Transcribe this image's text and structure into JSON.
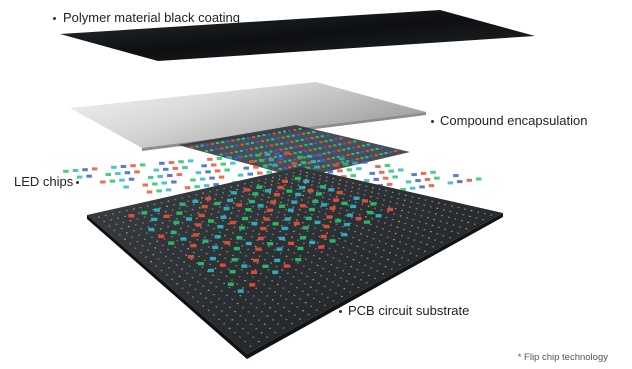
{
  "labels": {
    "polymer": "Polymer material black coating",
    "compound": "Compound encapsulation",
    "led": "LED chips",
    "pcb": "PCB circuit substrate"
  },
  "footnote": "* Flip chip technology",
  "colors": {
    "coating": "#111418",
    "encapsulation": "#cfcfcf",
    "pcb": "#2a2e31",
    "chip_red": "#e8523a",
    "chip_green": "#29c46a",
    "chip_cyan": "#2fb8c8",
    "chip_blue": "#3a63c8"
  }
}
